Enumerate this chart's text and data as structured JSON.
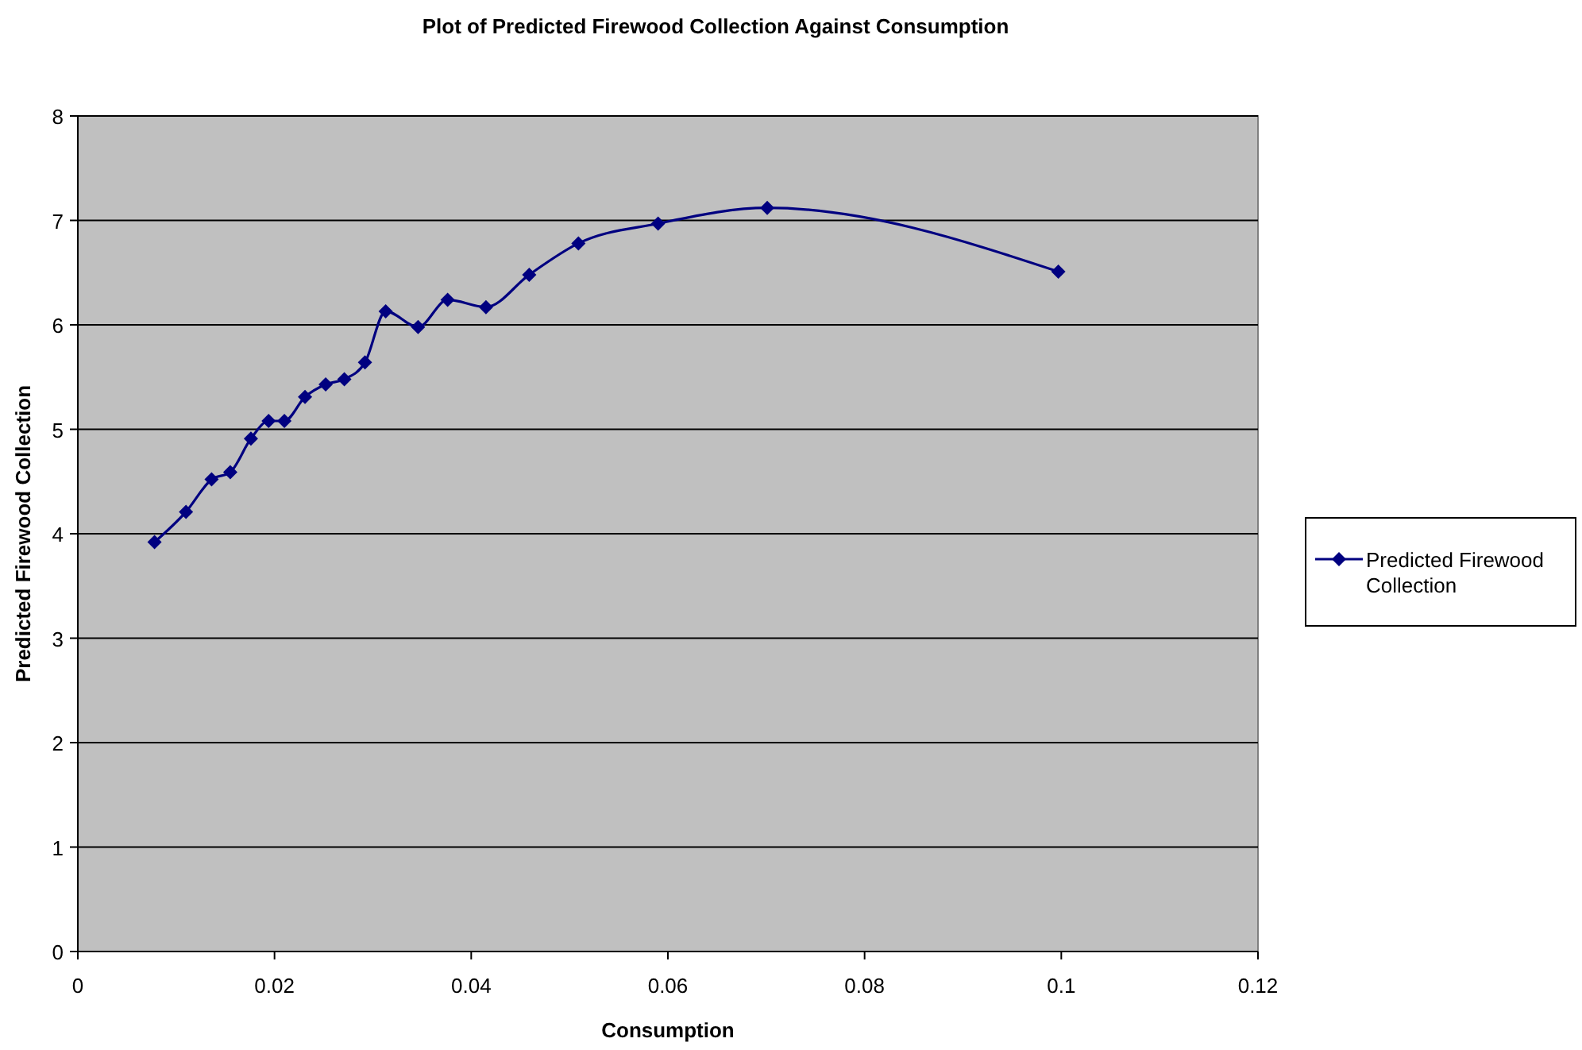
{
  "chart_data": {
    "type": "line",
    "title": "Plot of Predicted Firewood Collection Against Consumption",
    "xlabel": "Consumption",
    "ylabel": "Predicted Firewood Collection",
    "x": [
      0.0078,
      0.011,
      0.0136,
      0.0155,
      0.0176,
      0.0194,
      0.021,
      0.0231,
      0.0252,
      0.0271,
      0.0292,
      0.0313,
      0.0346,
      0.0376,
      0.0415,
      0.0459,
      0.0509,
      0.059,
      0.0701,
      0.0997
    ],
    "series": [
      {
        "name": "Predicted Firewood Collection",
        "color": "#000080",
        "values": [
          3.92,
          4.21,
          4.52,
          4.59,
          4.91,
          5.08,
          5.08,
          5.31,
          5.43,
          5.48,
          5.64,
          6.13,
          5.98,
          6.24,
          6.17,
          6.48,
          6.78,
          6.97,
          7.12,
          6.51
        ]
      }
    ],
    "xlim": [
      0,
      0.12
    ],
    "xticks": [
      0,
      0.02,
      0.04,
      0.06,
      0.08,
      0.1,
      0.12
    ],
    "ylim": [
      0,
      8
    ],
    "yticks": [
      0,
      1,
      2,
      3,
      4,
      5,
      6,
      7,
      8
    ],
    "grid": "y",
    "legend": "right",
    "marker": "diamond",
    "line_style": "solid"
  }
}
